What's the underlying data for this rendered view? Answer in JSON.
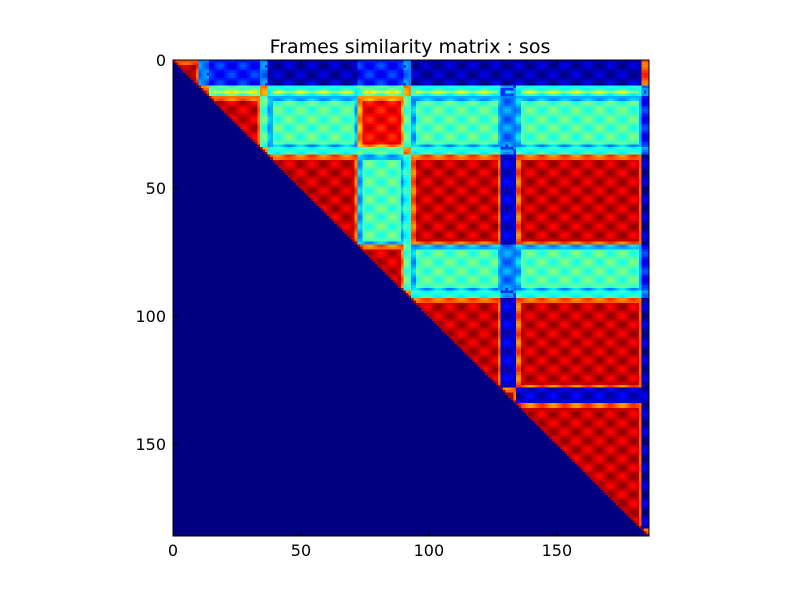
{
  "chart_data": {
    "type": "heatmap",
    "title": "Frames similarity matrix : sos",
    "matrix_size": 186,
    "colormap": "jet",
    "value_range": [
      0,
      1
    ],
    "xlim": [
      0,
      186
    ],
    "ylim": [
      0,
      186
    ],
    "y_axis_inverted": true,
    "x_ticks": [
      0,
      50,
      100,
      150
    ],
    "y_ticks": [
      0,
      50,
      100,
      150
    ],
    "x_tick_labels": [
      "0",
      "50",
      "100",
      "150"
    ],
    "y_tick_labels": [
      "0",
      "50",
      "100",
      "150"
    ],
    "lower_triangle_value": 0,
    "segments": [
      {
        "start": 0,
        "end": 10,
        "group": "A"
      },
      {
        "start": 10,
        "end": 14,
        "group": "T"
      },
      {
        "start": 14,
        "end": 34,
        "group": "B"
      },
      {
        "start": 34,
        "end": 37,
        "group": "T"
      },
      {
        "start": 37,
        "end": 72,
        "group": "C"
      },
      {
        "start": 72,
        "end": 90,
        "group": "D"
      },
      {
        "start": 90,
        "end": 93,
        "group": "T"
      },
      {
        "start": 93,
        "end": 128,
        "group": "C"
      },
      {
        "start": 128,
        "end": 134,
        "group": "E"
      },
      {
        "start": 134,
        "end": 183,
        "group": "C"
      },
      {
        "start": 183,
        "end": 186,
        "group": "A"
      }
    ],
    "group_similarity": {
      "A-A": 0.95,
      "A-T": 0.25,
      "A-B": 0.15,
      "A-C": 0.05,
      "A-D": 0.15,
      "A-E": 0.05,
      "T-T": 0.9,
      "T-B": 0.6,
      "T-C": 0.55,
      "T-D": 0.6,
      "T-E": 0.3,
      "B-B": 0.92,
      "B-C": 0.45,
      "B-D": 0.88,
      "B-E": 0.25,
      "C-C": 0.93,
      "C-D": 0.45,
      "C-E": 0.08,
      "D-D": 0.92,
      "D-E": 0.25,
      "E-E": 0.93
    },
    "cross_pair_pattern": [
      {
        "rows": [
          14,
          34
        ],
        "cols": [
          14,
          34
        ],
        "value": 0.95
      },
      {
        "rows": [
          14,
          34
        ],
        "cols": [
          72,
          90
        ],
        "value": 0.88
      },
      {
        "rows": [
          14,
          34
        ],
        "cols": [
          37,
          72
        ],
        "value": 0.45
      },
      {
        "rows": [
          72,
          90
        ],
        "cols": [
          93,
          128
        ],
        "value": 0.45
      }
    ]
  }
}
